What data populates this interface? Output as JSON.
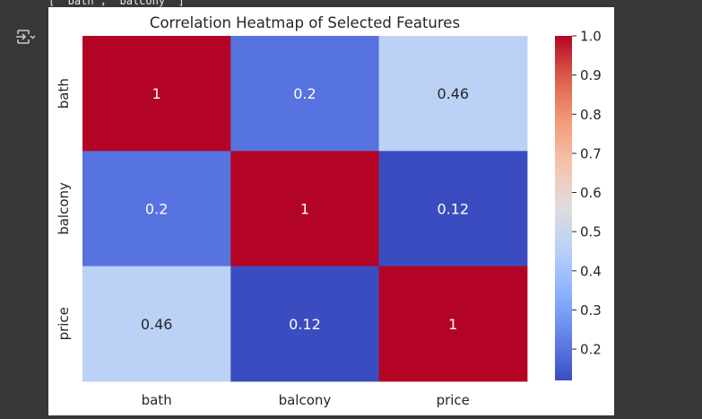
{
  "header_text": "[ 'bath', 'balcony' ]",
  "output_icon": "output-toggle-icon",
  "chart_data": {
    "type": "heatmap",
    "title": "Correlation Heatmap of Selected Features",
    "rows": [
      "bath",
      "balcony",
      "price"
    ],
    "columns": [
      "bath",
      "balcony",
      "price"
    ],
    "values": [
      [
        1,
        0.2,
        0.46
      ],
      [
        0.2,
        1,
        0.12
      ],
      [
        0.46,
        0.12,
        1
      ]
    ],
    "annotations": [
      [
        "1",
        "0.2",
        "0.46"
      ],
      [
        "0.2",
        "1",
        "0.12"
      ],
      [
        "0.46",
        "0.12",
        "1"
      ]
    ],
    "colormap": "coolwarm",
    "colorbar": {
      "min": 0.12,
      "max": 1.0,
      "ticks": [
        1.0,
        0.9,
        0.8,
        0.7,
        0.6,
        0.5,
        0.4,
        0.3,
        0.2
      ],
      "tick_labels": [
        "1.0",
        "0.9",
        "0.8",
        "0.7",
        "0.6",
        "0.5",
        "0.4",
        "0.3",
        "0.2"
      ]
    }
  }
}
